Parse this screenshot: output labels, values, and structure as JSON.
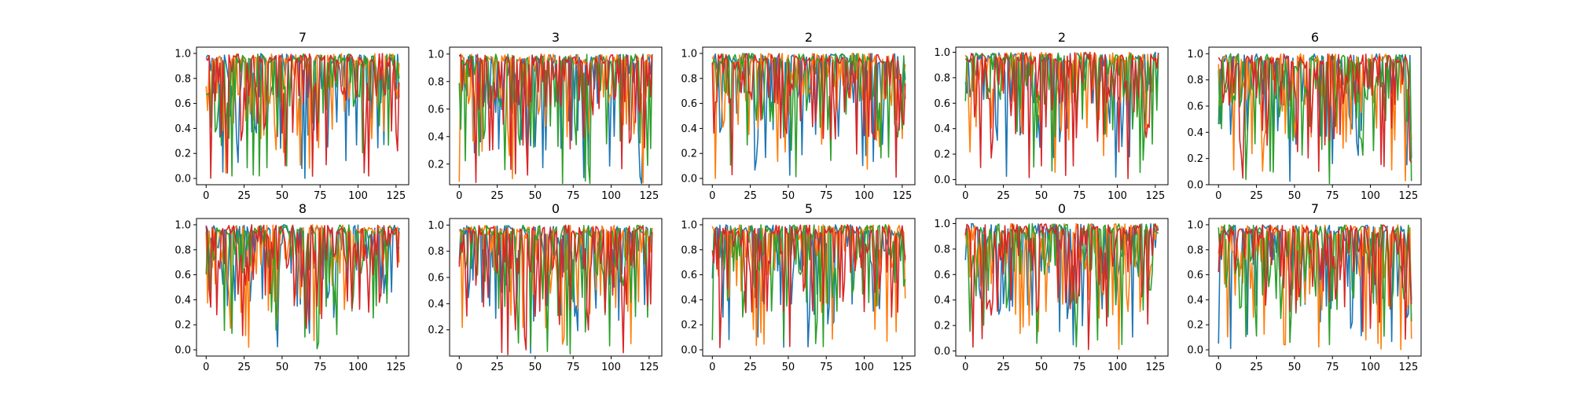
{
  "chart_data": [
    {
      "type": "line",
      "title": "7",
      "xlim": [
        -6.35,
        133.35
      ],
      "ylim": [
        -0.05,
        1.05
      ],
      "xticks": [
        "0",
        "25",
        "50",
        "75",
        "100",
        "125"
      ],
      "yticks": [
        "0.0",
        "0.2",
        "0.4",
        "0.6",
        "0.8",
        "1.0"
      ],
      "series_colors": [
        "#1f77b4",
        "#ff7f0e",
        "#2ca02c",
        "#d62728"
      ]
    },
    {
      "type": "line",
      "title": "3",
      "xlim": [
        -6.35,
        133.35
      ],
      "ylim": [
        0.05,
        1.05
      ],
      "xticks": [
        "0",
        "25",
        "50",
        "75",
        "100",
        "125"
      ],
      "yticks": [
        "0.2",
        "0.4",
        "0.6",
        "0.8",
        "1.0"
      ],
      "series_colors": [
        "#1f77b4",
        "#ff7f0e",
        "#2ca02c",
        "#d62728"
      ]
    },
    {
      "type": "line",
      "title": "2",
      "xlim": [
        -6.35,
        133.35
      ],
      "ylim": [
        -0.05,
        1.05
      ],
      "xticks": [
        "0",
        "25",
        "50",
        "75",
        "100",
        "125"
      ],
      "yticks": [
        "0.0",
        "0.2",
        "0.4",
        "0.6",
        "0.8",
        "1.0"
      ],
      "series_colors": [
        "#1f77b4",
        "#ff7f0e",
        "#2ca02c",
        "#d62728"
      ]
    },
    {
      "type": "line",
      "title": "2",
      "xlim": [
        -6.35,
        133.35
      ],
      "ylim": [
        -0.04,
        1.04
      ],
      "xticks": [
        "0",
        "25",
        "50",
        "75",
        "100",
        "125"
      ],
      "yticks": [
        "0.0",
        "0.2",
        "0.4",
        "0.6",
        "0.8",
        "1.0"
      ],
      "series_colors": [
        "#1f77b4",
        "#ff7f0e",
        "#2ca02c",
        "#d62728"
      ]
    },
    {
      "type": "line",
      "title": "6",
      "xlim": [
        -6.35,
        133.35
      ],
      "ylim": [
        0.0,
        1.05
      ],
      "xticks": [
        "0",
        "25",
        "50",
        "75",
        "100",
        "125"
      ],
      "yticks": [
        "0.0",
        "0.2",
        "0.4",
        "0.6",
        "0.8",
        "1.0"
      ],
      "series_colors": [
        "#1f77b4",
        "#ff7f0e",
        "#2ca02c",
        "#d62728"
      ]
    },
    {
      "type": "line",
      "title": "8",
      "xlim": [
        -6.35,
        133.35
      ],
      "ylim": [
        -0.05,
        1.05
      ],
      "xticks": [
        "0",
        "25",
        "50",
        "75",
        "100",
        "125"
      ],
      "yticks": [
        "0.0",
        "0.2",
        "0.4",
        "0.6",
        "0.8",
        "1.0"
      ],
      "series_colors": [
        "#1f77b4",
        "#ff7f0e",
        "#2ca02c",
        "#d62728"
      ]
    },
    {
      "type": "line",
      "title": "0",
      "xlim": [
        -6.35,
        133.35
      ],
      "ylim": [
        0.0,
        1.05
      ],
      "xticks": [
        "0",
        "25",
        "50",
        "75",
        "100",
        "125"
      ],
      "yticks": [
        "0.2",
        "0.4",
        "0.6",
        "0.8",
        "1.0"
      ],
      "series_colors": [
        "#1f77b4",
        "#ff7f0e",
        "#2ca02c",
        "#d62728"
      ]
    },
    {
      "type": "line",
      "title": "5",
      "xlim": [
        -6.35,
        133.35
      ],
      "ylim": [
        -0.05,
        1.05
      ],
      "xticks": [
        "0",
        "25",
        "50",
        "75",
        "100",
        "125"
      ],
      "yticks": [
        "0.0",
        "0.2",
        "0.4",
        "0.6",
        "0.8",
        "1.0"
      ],
      "series_colors": [
        "#1f77b4",
        "#ff7f0e",
        "#2ca02c",
        "#d62728"
      ]
    },
    {
      "type": "line",
      "title": "0",
      "xlim": [
        -6.35,
        133.35
      ],
      "ylim": [
        -0.04,
        1.04
      ],
      "xticks": [
        "0",
        "25",
        "50",
        "75",
        "100",
        "125"
      ],
      "yticks": [
        "0.0",
        "0.2",
        "0.4",
        "0.6",
        "0.8",
        "1.0"
      ],
      "series_colors": [
        "#1f77b4",
        "#ff7f0e",
        "#2ca02c",
        "#d62728"
      ]
    },
    {
      "type": "line",
      "title": "7",
      "xlim": [
        -6.35,
        133.35
      ],
      "ylim": [
        -0.05,
        1.05
      ],
      "xticks": [
        "0",
        "25",
        "50",
        "75",
        "100",
        "125"
      ],
      "yticks": [
        "0.0",
        "0.2",
        "0.4",
        "0.6",
        "0.8",
        "1.0"
      ],
      "series_colors": [
        "#1f77b4",
        "#ff7f0e",
        "#2ca02c",
        "#d62728"
      ]
    }
  ]
}
